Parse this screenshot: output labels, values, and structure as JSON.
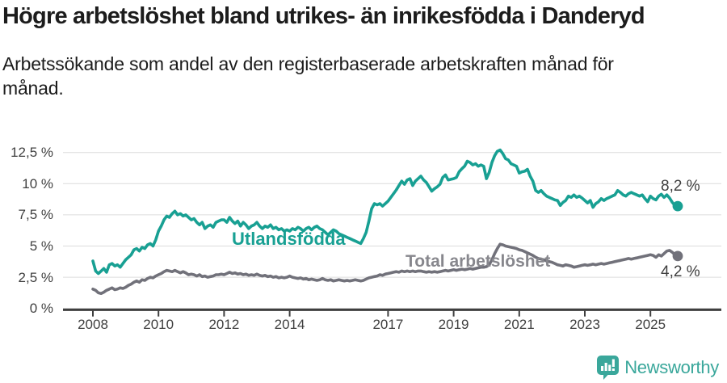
{
  "title": "Högre arbetslöshet bland utrikes- än inrikesfödda i Danderyd",
  "subtitle_lines": [
    "Arbetssökande som andel av den registerbaserade arbetskraften månad för",
    "månad."
  ],
  "colors": {
    "background": "#ffffff",
    "grid": "#dcdcdc",
    "axis": "#3f3f3f",
    "title_text": "#1c1c1c",
    "tick_text": "#3f3f3f",
    "teal": "#18a093",
    "gray_line": "#71717a",
    "gray_label": "#87878d"
  },
  "branding": {
    "logo_text": "Newsworthy",
    "logo_color": "#3aa79b",
    "logo_icon": "newsworthy-speech-bubble-bar-chart-icon"
  },
  "chart_data": {
    "type": "line",
    "title": "Högre arbetslöshet bland utrikes- än inrikesfödda i Danderyd",
    "subtitle": "Arbetssökande som andel av den registerbaserade arbetskraften månad för månad.",
    "x_unit": "month",
    "x_start": "2008-01",
    "x_end": "2025-11",
    "x_start_year": 2008,
    "ylim": [
      0,
      13.1
    ],
    "grid": true,
    "legend_position": "inline-labels",
    "yticks": [
      "0 %",
      "2,5 %",
      "5 %",
      "7,5 %",
      "10 %",
      "12,5 %"
    ],
    "ytick_values": [
      0,
      2.5,
      5,
      7.5,
      10,
      12.5
    ],
    "xticks": [
      "2008",
      "2010",
      "2012",
      "2014",
      "2017",
      "2019",
      "2021",
      "2023",
      "2025"
    ],
    "series": [
      {
        "name": "Utlandsfödda",
        "color": "#18a093",
        "label_color": "#18a093",
        "end_label": "8,2 %",
        "end_value": 8.2,
        "values": [
          3.8,
          3.0,
          2.8,
          3.0,
          3.2,
          2.9,
          3.5,
          3.6,
          3.4,
          3.5,
          3.3,
          3.6,
          3.9,
          4.1,
          4.3,
          4.7,
          4.8,
          4.6,
          4.9,
          4.8,
          5.1,
          5.2,
          5.0,
          5.5,
          6.2,
          6.6,
          7.1,
          7.4,
          7.3,
          7.6,
          7.8,
          7.5,
          7.6,
          7.4,
          7.5,
          7.3,
          7.1,
          7.2,
          6.9,
          6.7,
          6.9,
          6.4,
          6.6,
          6.7,
          6.5,
          6.9,
          7.0,
          7.1,
          7.1,
          6.9,
          7.3,
          7.0,
          6.8,
          7.0,
          6.6,
          6.9,
          6.7,
          6.4,
          6.6,
          6.7,
          6.9,
          6.6,
          6.4,
          6.6,
          6.5,
          6.7,
          6.4,
          6.5,
          6.3,
          6.4,
          6.2,
          6.3,
          6.2,
          6.4,
          6.3,
          6.5,
          6.4,
          6.2,
          6.4,
          6.5,
          6.3,
          6.5,
          6.6,
          6.4,
          6.3,
          6.1,
          5.9,
          6.1,
          6.3,
          6.2,
          6.0,
          5.9,
          5.8,
          5.7,
          5.6,
          5.5,
          5.4,
          5.3,
          5.2,
          5.6,
          6.1,
          7.0,
          8.0,
          8.4,
          8.3,
          8.4,
          8.2,
          8.4,
          8.6,
          8.9,
          9.2,
          9.5,
          9.85,
          10.2,
          9.95,
          10.3,
          10.4,
          9.85,
          10.2,
          10.4,
          10.6,
          10.3,
          10.1,
          9.75,
          9.4,
          9.6,
          9.75,
          9.95,
          10.5,
          10.7,
          10.3,
          10.35,
          10.4,
          10.5,
          10.95,
          11.2,
          11.4,
          11.8,
          11.7,
          11.5,
          11.6,
          11.4,
          11.5,
          11.4,
          10.4,
          10.9,
          11.7,
          12.25,
          12.6,
          12.7,
          12.4,
          12.0,
          11.9,
          11.6,
          11.5,
          11.4,
          10.85,
          10.95,
          11.0,
          11.15,
          10.6,
          10.2,
          9.45,
          9.3,
          9.45,
          9.2,
          9.0,
          8.9,
          8.8,
          8.7,
          8.65,
          8.25,
          8.5,
          8.65,
          9.0,
          8.9,
          9.1,
          8.9,
          9.0,
          8.85,
          8.65,
          8.45,
          8.65,
          8.1,
          8.4,
          8.55,
          8.8,
          8.65,
          8.8,
          8.9,
          9.0,
          9.1,
          9.45,
          9.3,
          9.1,
          9.0,
          9.2,
          9.3,
          9.2,
          9.1,
          9.0,
          9.1,
          8.8,
          8.55,
          9.0,
          8.8,
          8.7,
          9.0,
          9.15,
          8.9,
          9.1,
          8.85,
          8.5,
          8.25,
          8.2
        ]
      },
      {
        "name": "Total arbetslöshet",
        "color": "#71717a",
        "label_color": "#87878d",
        "end_label": "4,2 %",
        "end_value": 4.2,
        "values": [
          1.55,
          1.45,
          1.25,
          1.2,
          1.3,
          1.45,
          1.55,
          1.65,
          1.5,
          1.55,
          1.65,
          1.6,
          1.7,
          1.85,
          1.95,
          2.1,
          2.2,
          2.1,
          2.3,
          2.25,
          2.4,
          2.5,
          2.45,
          2.6,
          2.7,
          2.8,
          2.95,
          3.05,
          3.0,
          2.95,
          3.05,
          2.95,
          2.85,
          2.95,
          2.85,
          2.7,
          2.75,
          2.7,
          2.6,
          2.7,
          2.55,
          2.6,
          2.5,
          2.55,
          2.6,
          2.7,
          2.7,
          2.75,
          2.7,
          2.8,
          2.9,
          2.8,
          2.85,
          2.75,
          2.8,
          2.7,
          2.75,
          2.65,
          2.7,
          2.65,
          2.75,
          2.65,
          2.6,
          2.65,
          2.55,
          2.6,
          2.5,
          2.55,
          2.45,
          2.5,
          2.45,
          2.5,
          2.6,
          2.5,
          2.45,
          2.4,
          2.45,
          2.35,
          2.4,
          2.3,
          2.35,
          2.3,
          2.25,
          2.3,
          2.4,
          2.3,
          2.25,
          2.3,
          2.2,
          2.25,
          2.3,
          2.25,
          2.2,
          2.25,
          2.2,
          2.25,
          2.3,
          2.25,
          2.2,
          2.25,
          2.35,
          2.45,
          2.5,
          2.55,
          2.6,
          2.7,
          2.65,
          2.75,
          2.8,
          2.85,
          2.9,
          2.95,
          2.9,
          3.0,
          2.95,
          3.0,
          2.95,
          3.0,
          2.95,
          3.0,
          3.0,
          2.95,
          2.9,
          2.95,
          2.9,
          2.95,
          2.9,
          2.95,
          3.0,
          3.05,
          3.0,
          3.05,
          3.1,
          3.05,
          3.1,
          3.15,
          3.1,
          3.15,
          3.2,
          3.15,
          3.2,
          3.25,
          3.3,
          3.3,
          3.35,
          3.5,
          3.9,
          4.4,
          4.8,
          5.15,
          5.1,
          5.0,
          4.95,
          4.9,
          4.85,
          4.8,
          4.7,
          4.65,
          4.55,
          4.45,
          4.35,
          4.25,
          4.1,
          4.0,
          3.95,
          3.9,
          3.8,
          3.75,
          3.7,
          3.6,
          3.5,
          3.45,
          3.4,
          3.5,
          3.45,
          3.4,
          3.3,
          3.35,
          3.4,
          3.45,
          3.5,
          3.45,
          3.5,
          3.55,
          3.5,
          3.55,
          3.6,
          3.55,
          3.6,
          3.65,
          3.7,
          3.75,
          3.8,
          3.85,
          3.9,
          3.95,
          4.0,
          3.95,
          4.0,
          4.05,
          4.1,
          4.15,
          4.2,
          4.25,
          4.3,
          4.25,
          4.1,
          4.3,
          4.2,
          4.4,
          4.6,
          4.65,
          4.5,
          4.3,
          4.2
        ]
      }
    ]
  }
}
